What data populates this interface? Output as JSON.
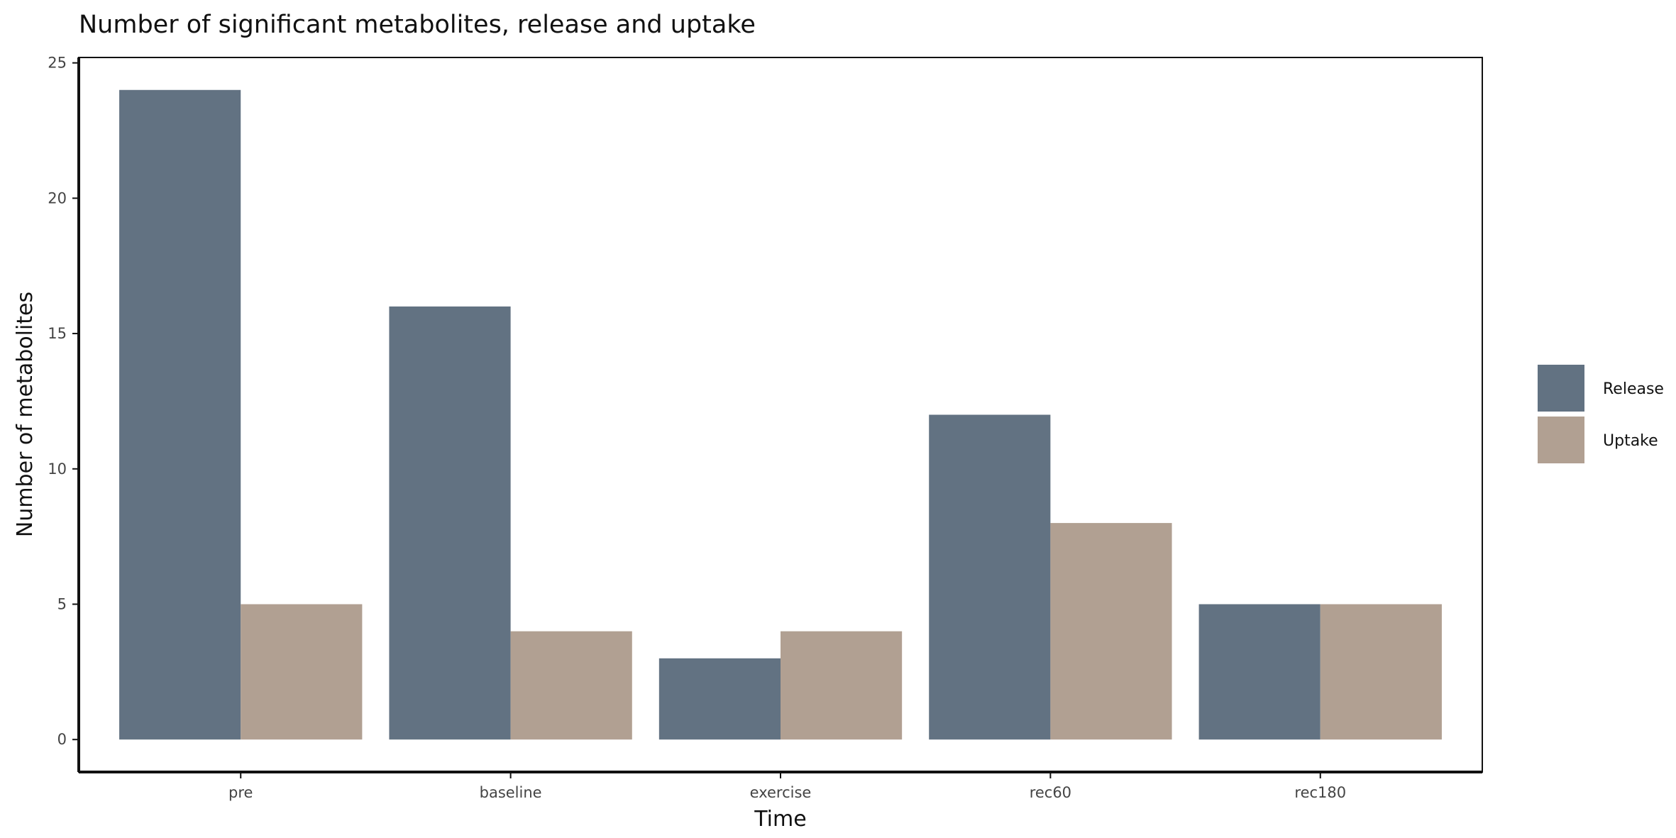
{
  "chart_data": {
    "type": "bar",
    "title": "Number of significant metabolites, release and uptake",
    "xlabel": "Time",
    "ylabel": "Number of metabolites",
    "categories": [
      "pre",
      "baseline",
      "exercise",
      "rec60",
      "rec180"
    ],
    "series": [
      {
        "name": "Release",
        "color": "#627282",
        "values": [
          24,
          16,
          3,
          12,
          5
        ]
      },
      {
        "name": "Uptake",
        "color": "#b1a092",
        "values": [
          5,
          4,
          4,
          8,
          5
        ]
      }
    ],
    "ylim": [
      -1.2,
      25.2
    ],
    "yticks": [
      0,
      5,
      10,
      15,
      20,
      25
    ],
    "grid": false,
    "legend_position": "right"
  }
}
